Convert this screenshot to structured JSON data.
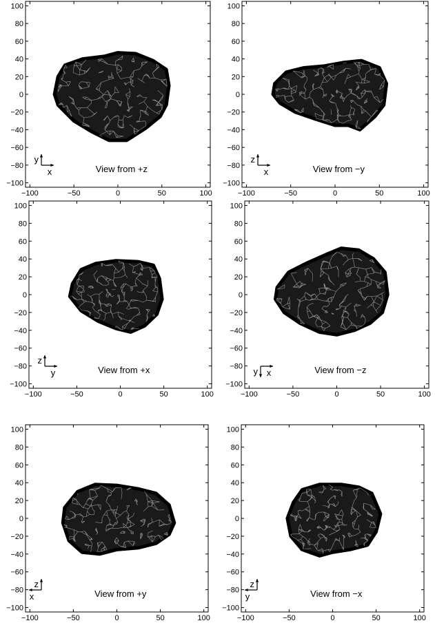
{
  "chart_data": [
    {
      "type": "mesh-projection",
      "title": "View from +z",
      "axis_indicator": {
        "vertical": "y",
        "horizontal": "x"
      },
      "xlim": [
        -105,
        105
      ],
      "ylim": [
        -105,
        105
      ],
      "xticks": [
        -100,
        -50,
        0,
        50,
        100
      ],
      "yticks": [
        -100,
        -80,
        -60,
        -40,
        -20,
        0,
        20,
        40,
        60,
        80,
        100
      ],
      "silhouette": [
        [
          -68,
          20
        ],
        [
          -60,
          33
        ],
        [
          -40,
          40
        ],
        [
          -15,
          43
        ],
        [
          0,
          47
        ],
        [
          20,
          46
        ],
        [
          40,
          38
        ],
        [
          55,
          28
        ],
        [
          58,
          10
        ],
        [
          55,
          -12
        ],
        [
          48,
          -25
        ],
        [
          32,
          -38
        ],
        [
          10,
          -52
        ],
        [
          -10,
          -52
        ],
        [
          -30,
          -42
        ],
        [
          -50,
          -30
        ],
        [
          -68,
          -12
        ],
        [
          -72,
          0
        ]
      ],
      "grid": false
    },
    {
      "type": "mesh-projection",
      "title": "View from −y",
      "axis_indicator": {
        "vertical": "z",
        "horizontal": "x"
      },
      "xlim": [
        -105,
        105
      ],
      "ylim": [
        -105,
        105
      ],
      "xticks": [
        -100,
        -50,
        0,
        50,
        100
      ],
      "yticks": [
        -100,
        -80,
        -60,
        -40,
        -20,
        0,
        20,
        40,
        60,
        80,
        100
      ],
      "silhouette": [
        [
          -68,
          12
        ],
        [
          -55,
          25
        ],
        [
          -35,
          30
        ],
        [
          -12,
          32
        ],
        [
          10,
          36
        ],
        [
          30,
          38
        ],
        [
          50,
          30
        ],
        [
          58,
          12
        ],
        [
          55,
          -12
        ],
        [
          45,
          -25
        ],
        [
          28,
          -40
        ],
        [
          15,
          -35
        ],
        [
          0,
          -35
        ],
        [
          -22,
          -28
        ],
        [
          -45,
          -20
        ],
        [
          -62,
          -10
        ],
        [
          -70,
          0
        ]
      ],
      "grid": false
    },
    {
      "type": "mesh-projection",
      "title": "View from +x",
      "axis_indicator": {
        "vertical": "z",
        "horizontal": "y"
      },
      "xlim": [
        -105,
        105
      ],
      "ylim": [
        -105,
        105
      ],
      "xticks": [
        -100,
        -50,
        0,
        50,
        100
      ],
      "yticks": [
        -100,
        -80,
        -60,
        -40,
        -20,
        0,
        20,
        40,
        60,
        80,
        100
      ],
      "silhouette": [
        [
          -55,
          12
        ],
        [
          -45,
          28
        ],
        [
          -28,
          35
        ],
        [
          -5,
          38
        ],
        [
          20,
          37
        ],
        [
          38,
          33
        ],
        [
          45,
          18
        ],
        [
          48,
          -5
        ],
        [
          42,
          -22
        ],
        [
          28,
          -35
        ],
        [
          12,
          -42
        ],
        [
          -5,
          -38
        ],
        [
          -25,
          -30
        ],
        [
          -45,
          -18
        ],
        [
          -58,
          -2
        ]
      ],
      "grid": false
    },
    {
      "type": "mesh-projection",
      "title": "View from −z",
      "axis_indicator": {
        "vertical": "y",
        "horizontal": "x",
        "vertical_direction": "down"
      },
      "xlim": [
        -105,
        105
      ],
      "ylim": [
        -105,
        105
      ],
      "xticks": [
        -100,
        -50,
        0,
        50,
        100
      ],
      "yticks": [
        -100,
        -80,
        -60,
        -40,
        -20,
        0,
        20,
        40,
        60,
        80,
        100
      ],
      "silhouette": [
        [
          -68,
          8
        ],
        [
          -55,
          25
        ],
        [
          -35,
          35
        ],
        [
          -12,
          45
        ],
        [
          5,
          52
        ],
        [
          25,
          50
        ],
        [
          42,
          40
        ],
        [
          55,
          25
        ],
        [
          58,
          0
        ],
        [
          52,
          -20
        ],
        [
          38,
          -32
        ],
        [
          20,
          -40
        ],
        [
          0,
          -45
        ],
        [
          -20,
          -42
        ],
        [
          -42,
          -32
        ],
        [
          -60,
          -20
        ],
        [
          -70,
          -5
        ]
      ],
      "grid": false
    },
    {
      "type": "mesh-projection",
      "title": "View from +y",
      "axis_indicator": {
        "vertical": "z",
        "horizontal": "x",
        "horizontal_direction": "left"
      },
      "xlim": [
        -105,
        105
      ],
      "ylim": [
        -105,
        105
      ],
      "xticks": [
        -100,
        -50,
        0,
        50,
        100
      ],
      "yticks": [
        -100,
        -80,
        -60,
        -40,
        -20,
        0,
        20,
        40,
        60,
        80,
        100
      ],
      "silhouette": [
        [
          -60,
          12
        ],
        [
          -45,
          30
        ],
        [
          -25,
          38
        ],
        [
          0,
          37
        ],
        [
          25,
          33
        ],
        [
          45,
          28
        ],
        [
          60,
          15
        ],
        [
          66,
          -5
        ],
        [
          60,
          -18
        ],
        [
          45,
          -28
        ],
        [
          25,
          -33
        ],
        [
          0,
          -35
        ],
        [
          -20,
          -40
        ],
        [
          -40,
          -38
        ],
        [
          -55,
          -25
        ],
        [
          -62,
          -5
        ]
      ],
      "grid": false
    },
    {
      "type": "mesh-projection",
      "title": "View from −x",
      "axis_indicator": {
        "vertical": "z",
        "horizontal": "y",
        "horizontal_direction": "left"
      },
      "xlim": [
        -105,
        105
      ],
      "ylim": [
        -105,
        105
      ],
      "xticks": [
        -100,
        -50,
        0,
        50,
        100
      ],
      "yticks": [
        -100,
        -80,
        -60,
        -40,
        -20,
        0,
        20,
        40,
        60,
        80,
        100
      ],
      "silhouette": [
        [
          -45,
          18
        ],
        [
          -35,
          32
        ],
        [
          -15,
          38
        ],
        [
          10,
          38
        ],
        [
          30,
          35
        ],
        [
          45,
          28
        ],
        [
          55,
          5
        ],
        [
          50,
          -15
        ],
        [
          40,
          -30
        ],
        [
          20,
          -35
        ],
        [
          0,
          -38
        ],
        [
          -15,
          -42
        ],
        [
          -35,
          -35
        ],
        [
          -48,
          -20
        ],
        [
          -52,
          0
        ]
      ],
      "grid": false
    }
  ]
}
